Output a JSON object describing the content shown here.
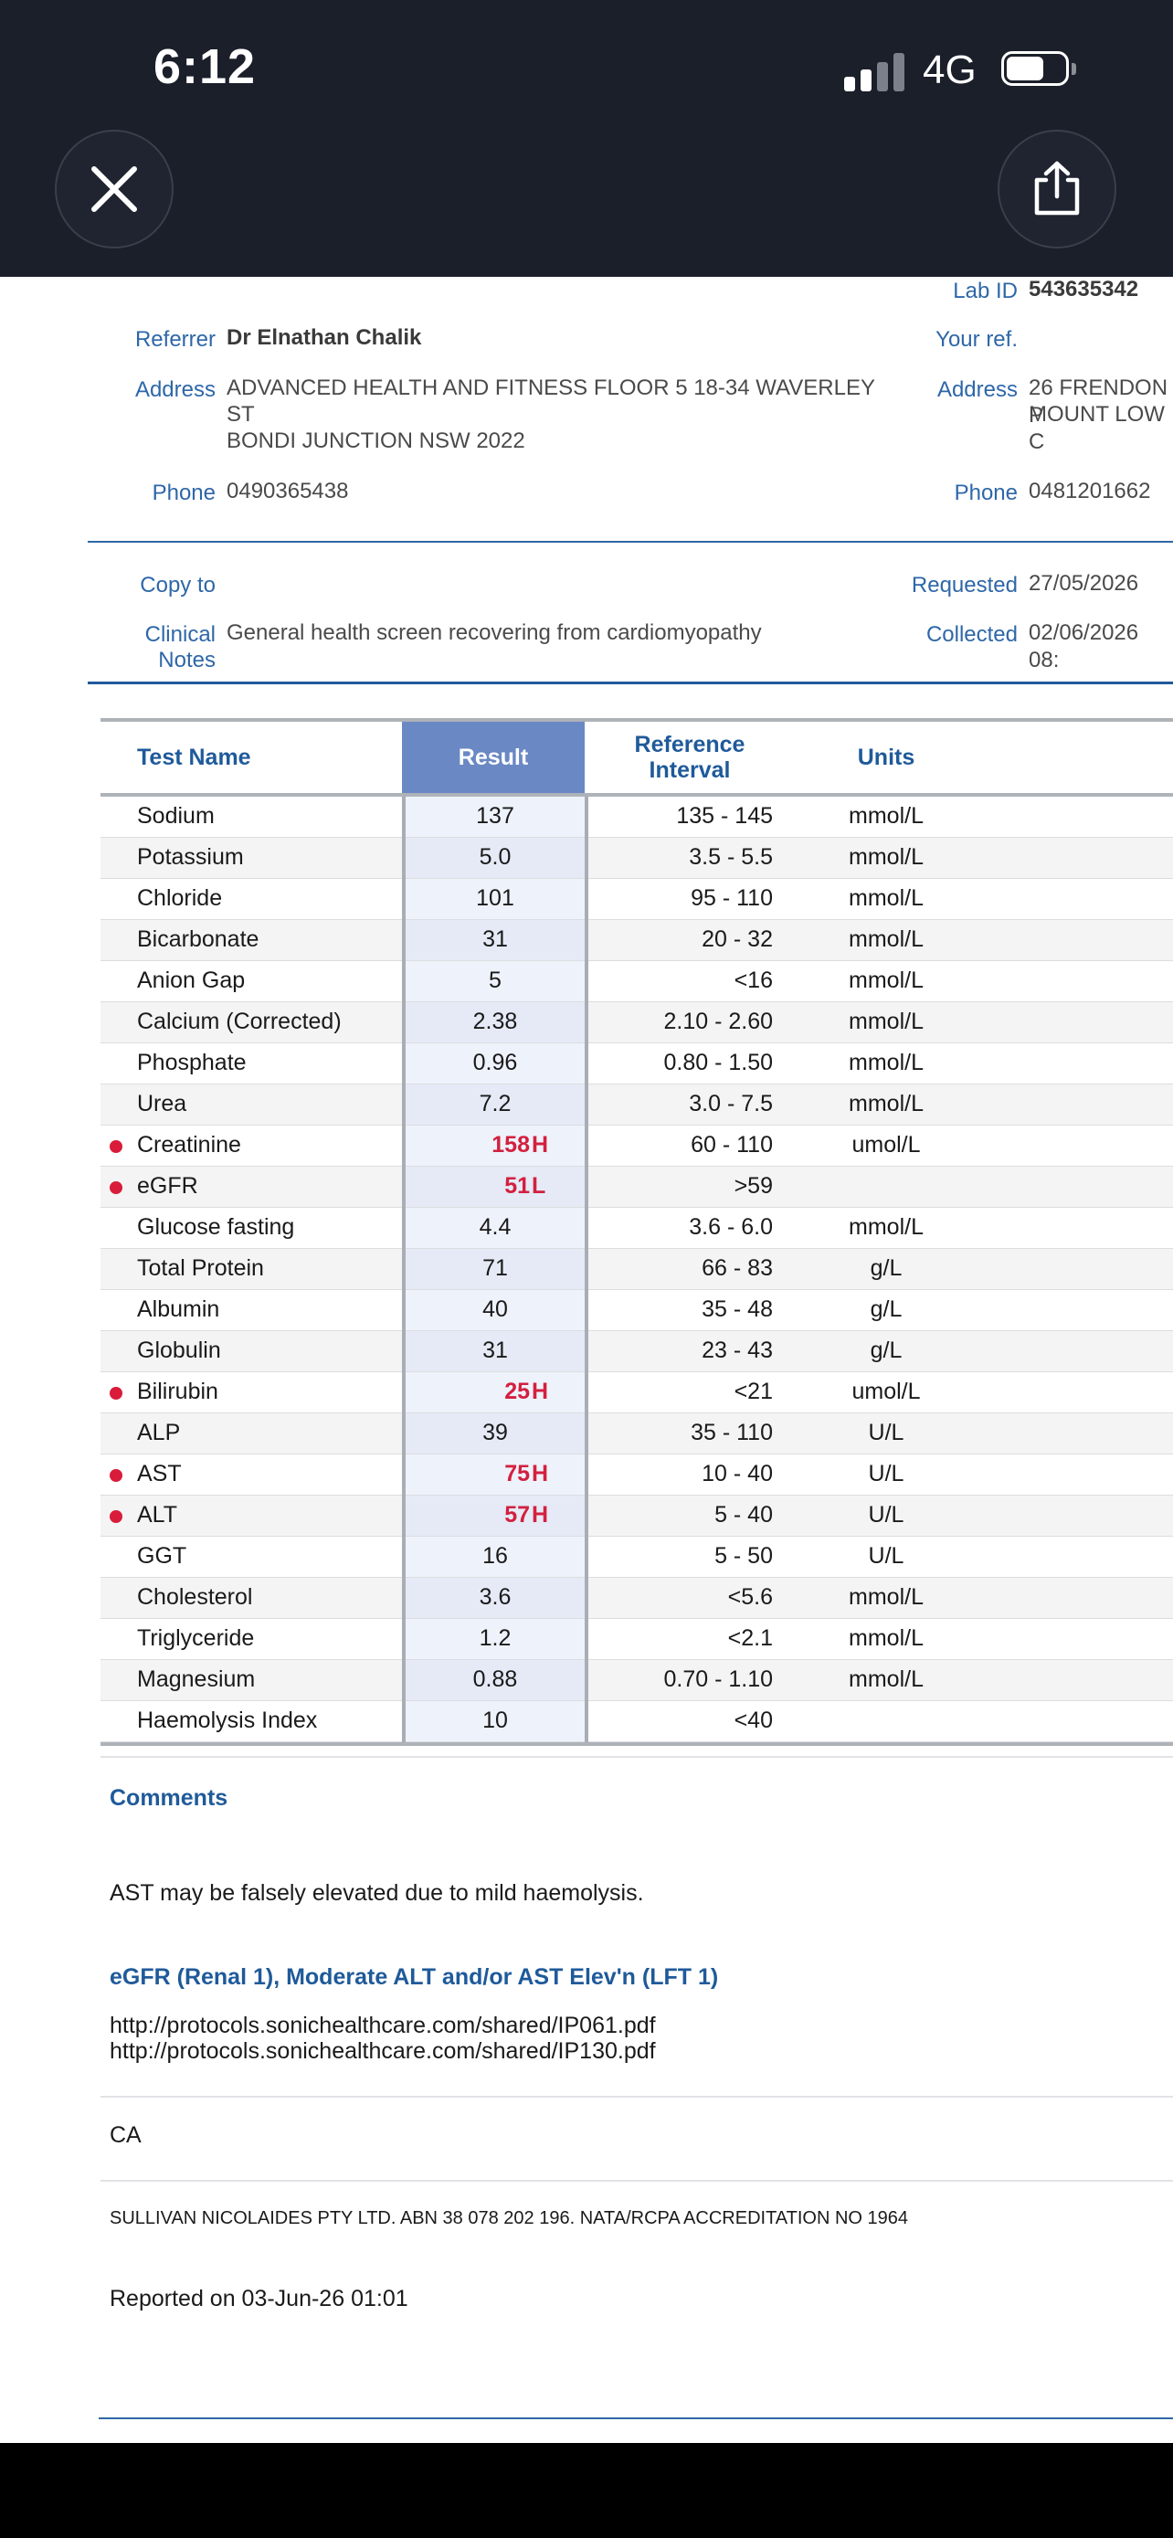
{
  "status_bar": {
    "time": "6:12",
    "network": "4G"
  },
  "toolbar": {
    "close_icon": "close-x-icon",
    "share_icon": "share-upload-icon"
  },
  "report_header": {
    "lab_id_label": "Lab ID",
    "lab_id": "543635342",
    "referrer_label": "Referrer",
    "referrer": "Dr Elnathan Chalik",
    "your_ref_label": "Your ref.",
    "address_label": "Address",
    "referrer_address_line1": "ADVANCED HEALTH AND FITNESS FLOOR 5 18-34 WAVERLEY",
    "referrer_address_line2": "ST",
    "referrer_address_line3": "BONDI JUNCTION NSW 2022",
    "patient_address_label": "Address",
    "patient_address_line1": "26 FRENDON P",
    "patient_address_line2": "MOUNT LOW C",
    "phone_label": "Phone",
    "referrer_phone": "0490365438",
    "patient_phone_label": "Phone",
    "patient_phone": "0481201662",
    "copy_to_label": "Copy to",
    "requested_label": "Requested",
    "requested": "27/05/2026",
    "clinical_notes_label": "Clinical Notes",
    "clinical_notes": "General health screen recovering from cardiomyopathy",
    "collected_label": "Collected",
    "collected": "02/06/2026 08:"
  },
  "table": {
    "headers": {
      "name": "Test Name",
      "result": "Result",
      "ref_line1": "Reference",
      "ref_line2": "Interval",
      "units": "Units"
    },
    "rows": [
      {
        "name": "Sodium",
        "result": "137",
        "flag": "",
        "ref": "135 - 145",
        "units": "mmol/L"
      },
      {
        "name": "Potassium",
        "result": "5.0",
        "flag": "",
        "ref": "3.5 - 5.5",
        "units": "mmol/L"
      },
      {
        "name": "Chloride",
        "result": "101",
        "flag": "",
        "ref": "95 - 110",
        "units": "mmol/L"
      },
      {
        "name": "Bicarbonate",
        "result": "31",
        "flag": "",
        "ref": "20 - 32",
        "units": "mmol/L"
      },
      {
        "name": "Anion Gap",
        "result": "5",
        "flag": "",
        "ref": "<16",
        "units": "mmol/L"
      },
      {
        "name": "Calcium (Corrected)",
        "result": "2.38",
        "flag": "",
        "ref": "2.10 - 2.60",
        "units": "mmol/L"
      },
      {
        "name": "Phosphate",
        "result": "0.96",
        "flag": "",
        "ref": "0.80 - 1.50",
        "units": "mmol/L"
      },
      {
        "name": "Urea",
        "result": "7.2",
        "flag": "",
        "ref": "3.0 - 7.5",
        "units": "mmol/L"
      },
      {
        "name": "Creatinine",
        "result": "158",
        "flag": "H",
        "ref": "60 - 110",
        "units": "umol/L"
      },
      {
        "name": "eGFR",
        "result": "51",
        "flag": "L",
        "ref": ">59",
        "units": ""
      },
      {
        "name": "Glucose fasting",
        "result": "4.4",
        "flag": "",
        "ref": "3.6 - 6.0",
        "units": "mmol/L"
      },
      {
        "name": "Total Protein",
        "result": "71",
        "flag": "",
        "ref": "66 - 83",
        "units": "g/L"
      },
      {
        "name": "Albumin",
        "result": "40",
        "flag": "",
        "ref": "35 - 48",
        "units": "g/L"
      },
      {
        "name": "Globulin",
        "result": "31",
        "flag": "",
        "ref": "23 - 43",
        "units": "g/L"
      },
      {
        "name": "Bilirubin",
        "result": "25",
        "flag": "H",
        "ref": "<21",
        "units": "umol/L"
      },
      {
        "name": "ALP",
        "result": "39",
        "flag": "",
        "ref": "35 - 110",
        "units": "U/L"
      },
      {
        "name": "AST",
        "result": "75",
        "flag": "H",
        "ref": "10 - 40",
        "units": "U/L"
      },
      {
        "name": "ALT",
        "result": "57",
        "flag": "H",
        "ref": "5 - 40",
        "units": "U/L"
      },
      {
        "name": "GGT",
        "result": "16",
        "flag": "",
        "ref": "5 - 50",
        "units": "U/L"
      },
      {
        "name": "Cholesterol",
        "result": "3.6",
        "flag": "",
        "ref": "<5.6",
        "units": "mmol/L"
      },
      {
        "name": "Triglyceride",
        "result": "1.2",
        "flag": "",
        "ref": "<2.1",
        "units": "mmol/L"
      },
      {
        "name": "Magnesium",
        "result": "0.88",
        "flag": "",
        "ref": "0.70 - 1.10",
        "units": "mmol/L"
      },
      {
        "name": "Haemolysis Index",
        "result": "10",
        "flag": "",
        "ref": "<40",
        "units": ""
      }
    ]
  },
  "comments": {
    "title": "Comments",
    "note": "AST may be falsely elevated due to mild haemolysis.",
    "protocol_title": "eGFR (Renal 1), Moderate ALT and/or AST Elev'n (LFT 1)",
    "link1": "http://protocols.sonichealthcare.com/shared/IP061.pdf",
    "link2": "http://protocols.sonichealthcare.com/shared/IP130.pdf",
    "initials": "CA",
    "lab_footer": "SULLIVAN NICOLAIDES PTY LTD. ABN 38 078 202 196. NATA/RCPA ACCREDITATION NO 1964",
    "reported_on": "Reported on 03-Jun-26 01:01"
  },
  "colors": {
    "accent_blue": "#2e67a8",
    "header_blue": "#1f5a9a",
    "result_header_bg": "#6a88c4",
    "abnormal_red": "#d3203f",
    "topbar_bg": "#1b1f2a"
  }
}
